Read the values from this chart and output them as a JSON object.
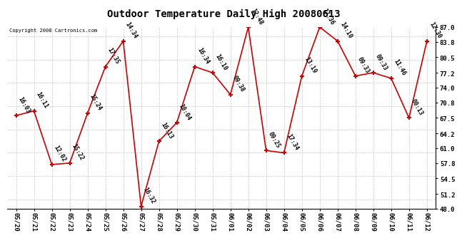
{
  "title": "Outdoor Temperature Daily High 20080613",
  "copyright": "Copyright 2008 Cartronics.com",
  "x_labels": [
    "05/20",
    "05/21",
    "05/22",
    "05/23",
    "05/24",
    "05/25",
    "05/26",
    "05/27",
    "05/28",
    "05/29",
    "05/30",
    "05/31",
    "06/01",
    "06/02",
    "06/03",
    "06/04",
    "06/05",
    "06/06",
    "06/07",
    "06/08",
    "06/09",
    "06/10",
    "06/11",
    "06/12"
  ],
  "y_values": [
    68.0,
    69.0,
    57.5,
    57.8,
    68.5,
    78.5,
    84.0,
    48.5,
    62.5,
    66.5,
    78.5,
    77.2,
    72.5,
    87.0,
    60.5,
    60.0,
    76.5,
    87.0,
    84.0,
    76.5,
    77.2,
    76.0,
    67.5,
    84.0
  ],
  "time_labels": [
    "16:03",
    "16:11",
    "12:02",
    "15:22",
    "15:24",
    "17:35",
    "14:34",
    "16:32",
    "16:13",
    "10:04",
    "16:34",
    "16:10",
    "09:38",
    "12:48",
    "09:25",
    "17:34",
    "13:19",
    "17:36",
    "14:10",
    "09:33",
    "09:33",
    "11:46",
    "00:13",
    "12:30"
  ],
  "y_min": 48.0,
  "y_max": 87.0,
  "y_ticks": [
    48.0,
    51.2,
    54.5,
    57.8,
    61.0,
    64.2,
    67.5,
    70.8,
    74.0,
    77.2,
    80.5,
    83.8,
    87.0
  ],
  "line_color": "#cc0000",
  "bg_color": "#ffffff",
  "grid_color": "#c8c8c8",
  "title_fontsize": 10,
  "tick_fontsize": 6.5,
  "annotation_fontsize": 6.0
}
